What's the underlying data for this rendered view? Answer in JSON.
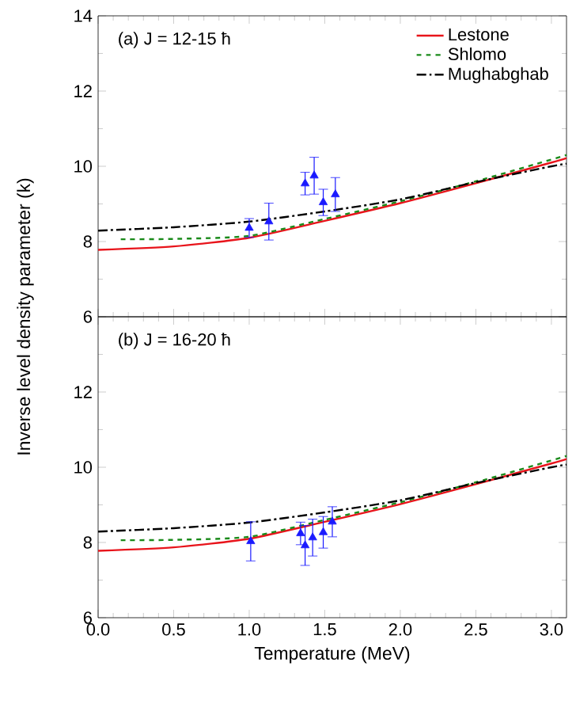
{
  "chart_data": [
    {
      "type": "line",
      "annotations": [
        "(a) J = 12-15 ħ"
      ],
      "ylabel": "Inverse level density parameter (k)",
      "xlim": [
        0,
        3.1
      ],
      "ylim": [
        6,
        14
      ],
      "xticks": [
        0,
        0.5,
        1,
        1.5,
        2,
        2.5,
        3
      ],
      "yticks": [
        6,
        8,
        10,
        12,
        14
      ],
      "tick_labels": "y",
      "legend": "top right",
      "series": [
        {
          "name": "Lestone",
          "color": "#e8141b",
          "line_style": "solid",
          "x": [
            0,
            0.5,
            1.0,
            1.5,
            2.0,
            2.5,
            3.0,
            3.1
          ],
          "values": [
            7.78,
            7.87,
            8.1,
            8.55,
            9.02,
            9.55,
            10.1,
            10.22
          ]
        },
        {
          "name": "Shlomo",
          "color": "#1a8a1a",
          "line_style": "dashed",
          "x": [
            0.15,
            0.5,
            1.0,
            1.5,
            2.0,
            2.5,
            3.0,
            3.1
          ],
          "values": [
            8.06,
            8.07,
            8.15,
            8.6,
            9.07,
            9.6,
            10.18,
            10.3
          ]
        },
        {
          "name": "Mughabghab",
          "color": "#000000",
          "line_style": "dashdot",
          "x": [
            0,
            0.5,
            1.0,
            1.5,
            2.0,
            2.5,
            3.0,
            3.1
          ],
          "values": [
            8.29,
            8.38,
            8.53,
            8.8,
            9.12,
            9.58,
            10.0,
            10.07
          ]
        },
        {
          "type": "scatter",
          "color": "#1a1aff",
          "marker": "triangle",
          "x": [
            1.0,
            1.13,
            1.37,
            1.43,
            1.49,
            1.57
          ],
          "values": [
            8.36,
            8.53,
            9.54,
            9.75,
            9.04,
            9.25
          ],
          "errors": [
            0.25,
            0.49,
            0.3,
            0.49,
            0.35,
            0.45
          ]
        }
      ]
    },
    {
      "type": "line",
      "annotations": [
        "(b) J = 16-20 ħ"
      ],
      "xlabel": "Temperature (MeV)",
      "xlim": [
        0,
        3.1
      ],
      "ylim": [
        6,
        14
      ],
      "xticks": [
        {
          "value": 0,
          "label": "0.0"
        },
        0.5,
        {
          "value": 1,
          "label": "1.0"
        },
        1.5,
        {
          "value": 2,
          "label": "2.0"
        },
        2.5,
        {
          "value": 3,
          "label": "3.0"
        }
      ],
      "yticks": [
        6,
        8,
        10,
        12,
        {
          "value": 14,
          "label": null
        }
      ],
      "series": [
        {
          "color": "#e8141b",
          "line_style": "solid",
          "x": [
            0,
            0.5,
            1.0,
            1.5,
            2.0,
            2.5,
            3.0,
            3.1
          ],
          "values": [
            7.78,
            7.87,
            8.1,
            8.55,
            9.02,
            9.55,
            10.1,
            10.22
          ]
        },
        {
          "color": "#1a8a1a",
          "line_style": "dashed",
          "x": [
            0.15,
            0.5,
            1.0,
            1.5,
            2.0,
            2.5,
            3.0,
            3.1
          ],
          "values": [
            8.06,
            8.07,
            8.15,
            8.6,
            9.07,
            9.6,
            10.18,
            10.3
          ]
        },
        {
          "color": "#000000",
          "line_style": "dashdot",
          "x": [
            0,
            0.5,
            1.0,
            1.5,
            2.0,
            2.5,
            3.0,
            3.1
          ],
          "values": [
            8.29,
            8.38,
            8.53,
            8.8,
            9.12,
            9.58,
            10.0,
            10.07
          ]
        },
        {
          "type": "scatter",
          "color": "#1a1aff",
          "marker": "triangle",
          "x": [
            1.01,
            1.34,
            1.37,
            1.42,
            1.49,
            1.55
          ],
          "values": [
            8.03,
            8.24,
            7.92,
            8.13,
            8.27,
            8.55
          ],
          "errors": [
            0.52,
            0.3,
            0.53,
            0.49,
            0.42,
            0.4
          ]
        }
      ]
    }
  ]
}
